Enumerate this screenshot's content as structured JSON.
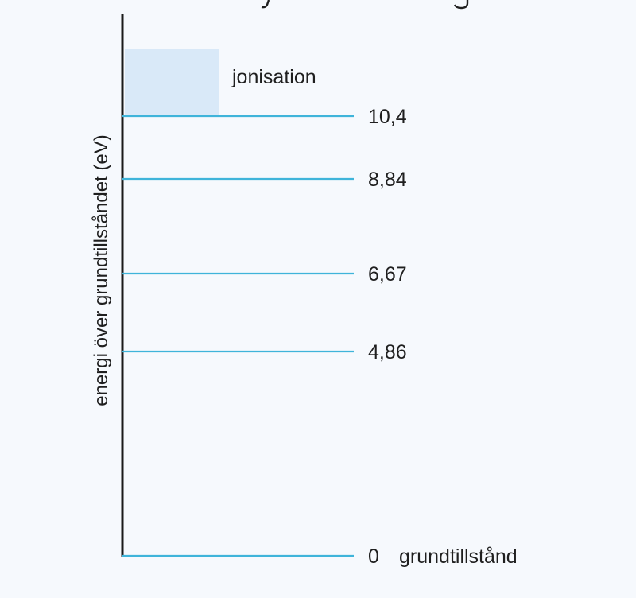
{
  "diagram": {
    "title_fragment": "…j …g…",
    "axis_title": "energi över grundtillståndet (eV)",
    "ionization_label": "jonisation",
    "ground_state_label": "grundtillstånd",
    "colors": {
      "level_line": "#3fb4da",
      "axis": "#1a1a1a",
      "ionization_fill": "#d9e9f8",
      "background": "#f6f9fd"
    },
    "levels": [
      {
        "energy_ev": 10.4,
        "label": "10,4"
      },
      {
        "energy_ev": 8.84,
        "label": "8,84"
      },
      {
        "energy_ev": 6.67,
        "label": "6,67"
      },
      {
        "energy_ev": 4.86,
        "label": "4,86"
      },
      {
        "energy_ev": 0,
        "label": "0"
      }
    ]
  }
}
